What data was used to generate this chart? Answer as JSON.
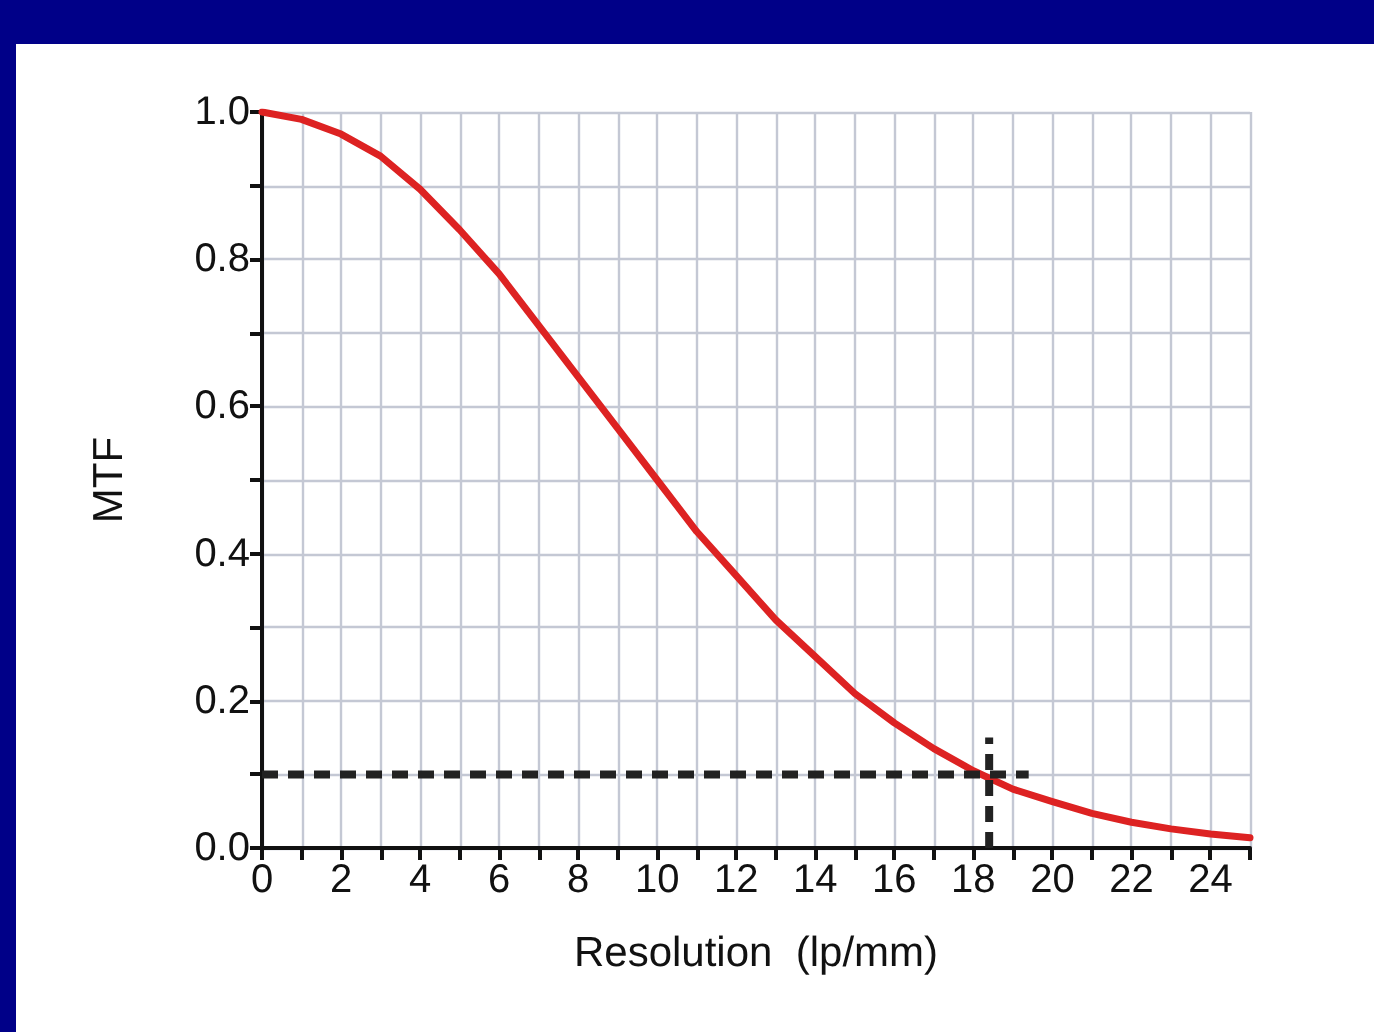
{
  "chart_data": {
    "type": "line",
    "xlabel": "Resolution  (lp/mm)",
    "ylabel": "MTF",
    "x": [
      0,
      1,
      2,
      3,
      4,
      5,
      6,
      7,
      8,
      9,
      10,
      11,
      12,
      13,
      14,
      15,
      16,
      17,
      18,
      19,
      20,
      21,
      22,
      23,
      24,
      25
    ],
    "series": [
      {
        "color": "#dd2222",
        "values": [
          1.0,
          0.99,
          0.97,
          0.94,
          0.895,
          0.84,
          0.78,
          0.71,
          0.64,
          0.57,
          0.5,
          0.43,
          0.37,
          0.31,
          0.26,
          0.21,
          0.17,
          0.135,
          0.105,
          0.08,
          0.063,
          0.047,
          0.035,
          0.026,
          0.019,
          0.014
        ]
      }
    ],
    "xlim": [
      0,
      25
    ],
    "xticks": [
      0,
      {
        "value": 1,
        "label": null
      },
      2,
      {
        "value": 3,
        "label": null
      },
      4,
      {
        "value": 5,
        "label": null
      },
      6,
      {
        "value": 7,
        "label": null
      },
      8,
      {
        "value": 9,
        "label": null
      },
      10,
      {
        "value": 11,
        "label": null
      },
      12,
      {
        "value": 13,
        "label": null
      },
      14,
      {
        "value": 15,
        "label": null
      },
      16,
      {
        "value": 17,
        "label": null
      },
      18,
      {
        "value": 19,
        "label": null
      },
      20,
      {
        "value": 21,
        "label": null
      },
      22,
      {
        "value": 23,
        "label": null
      },
      24,
      {
        "value": 25,
        "label": null
      }
    ],
    "ylim": [
      0,
      1
    ],
    "yticks": [
      {
        "value": 0,
        "label": "0.0"
      },
      {
        "value": 0.1,
        "label": null
      },
      0.2,
      {
        "value": 0.3,
        "label": null
      },
      0.4,
      {
        "value": 0.5,
        "label": null
      },
      0.6,
      {
        "value": 0.7,
        "label": null
      },
      0.8,
      {
        "value": 0.9,
        "label": null
      },
      {
        "value": 1,
        "label": "1.0"
      }
    ],
    "grid": true,
    "marker": "none",
    "line_style": "solid",
    "ref_lines": [
      {
        "axis": "y",
        "value": 0.1,
        "color": "#222222",
        "line_style": "dashed"
      },
      {
        "axis": "x",
        "value": 18.4,
        "color": "#222222",
        "line_style": "dashed"
      }
    ]
  }
}
